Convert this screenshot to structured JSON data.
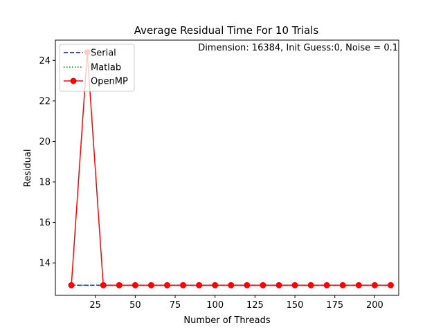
{
  "chart_data": {
    "type": "line",
    "title": "Average Residual Time For 10 Trials",
    "annotation": "Dimension: 16384, Init Guess:0, Noise = 0.1",
    "xlabel": "Number of Threads",
    "ylabel": "Residual",
    "xlim": [
      0,
      215
    ],
    "ylim": [
      12.4,
      25.0
    ],
    "x_ticks": [
      25,
      50,
      75,
      100,
      125,
      150,
      175,
      200
    ],
    "y_ticks": [
      14,
      16,
      18,
      20,
      22,
      24
    ],
    "grid": false,
    "legend_position": "upper-left",
    "series": [
      {
        "name": "Serial",
        "style": "dashed",
        "marker": "none",
        "color": "#0000ff",
        "x": [
          10,
          20,
          30,
          40,
          50,
          60,
          70,
          80,
          90,
          100,
          110,
          120,
          130,
          140,
          150,
          160,
          170,
          180,
          190,
          200,
          210
        ],
        "values": [
          12.9,
          12.9,
          12.9,
          12.9,
          12.9,
          12.9,
          12.9,
          12.9,
          12.9,
          12.9,
          12.9,
          12.9,
          12.9,
          12.9,
          12.9,
          12.9,
          12.9,
          12.9,
          12.9,
          12.9,
          12.9
        ]
      },
      {
        "name": "Matlab",
        "style": "dotted",
        "marker": "none",
        "color": "#008000",
        "x": [
          10,
          20,
          30,
          40,
          50,
          60,
          70,
          80,
          90,
          100,
          110,
          120,
          130,
          140,
          150,
          160,
          170,
          180,
          190,
          200,
          210
        ],
        "values": [
          12.9,
          12.9,
          12.9,
          12.9,
          12.9,
          12.9,
          12.9,
          12.9,
          12.9,
          12.9,
          12.9,
          12.9,
          12.9,
          12.9,
          12.9,
          12.9,
          12.9,
          12.9,
          12.9,
          12.9,
          12.9
        ]
      },
      {
        "name": "OpenMP",
        "style": "solid",
        "marker": "circle",
        "color": "#ff0000",
        "x": [
          10,
          20,
          30,
          40,
          50,
          60,
          70,
          80,
          90,
          100,
          110,
          120,
          130,
          140,
          150,
          160,
          170,
          180,
          190,
          200,
          210
        ],
        "values": [
          12.9,
          24.4,
          12.9,
          12.9,
          12.9,
          12.9,
          12.9,
          12.9,
          12.9,
          12.9,
          12.9,
          12.9,
          12.9,
          12.9,
          12.9,
          12.9,
          12.9,
          12.9,
          12.9,
          12.9,
          12.9
        ]
      }
    ]
  }
}
